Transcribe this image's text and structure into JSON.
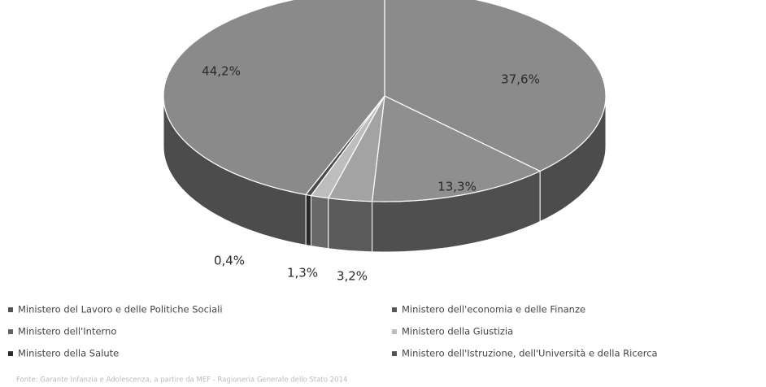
{
  "chart_data": {
    "type": "pie3d",
    "categories": [
      "Ministero del Lavoro e delle Politiche Sociali",
      "Ministero dell'economia e delle Finanze",
      "Ministero dell'Interno",
      "Ministero della Giustizia",
      "Ministero della Salute",
      "Ministero dell'Istruzione, dell'Università e della Ricerca"
    ],
    "values": [
      37.6,
      13.3,
      3.2,
      1.3,
      0.4,
      44.2
    ],
    "value_labels": [
      "37,6%",
      "13,3%",
      "3,2%",
      "1,3%",
      "0,4%",
      "44,2%"
    ],
    "colors": [
      "#8b8b8b",
      "#8f8f8f",
      "#a3a3a3",
      "#bdbdbd",
      "#4a4a4a",
      "#8a8a8a"
    ],
    "source": "Fonte: Garante Infanzia e Adolescenza, a partire da MEF - Ragioneria Generale dello Stato 2014"
  }
}
